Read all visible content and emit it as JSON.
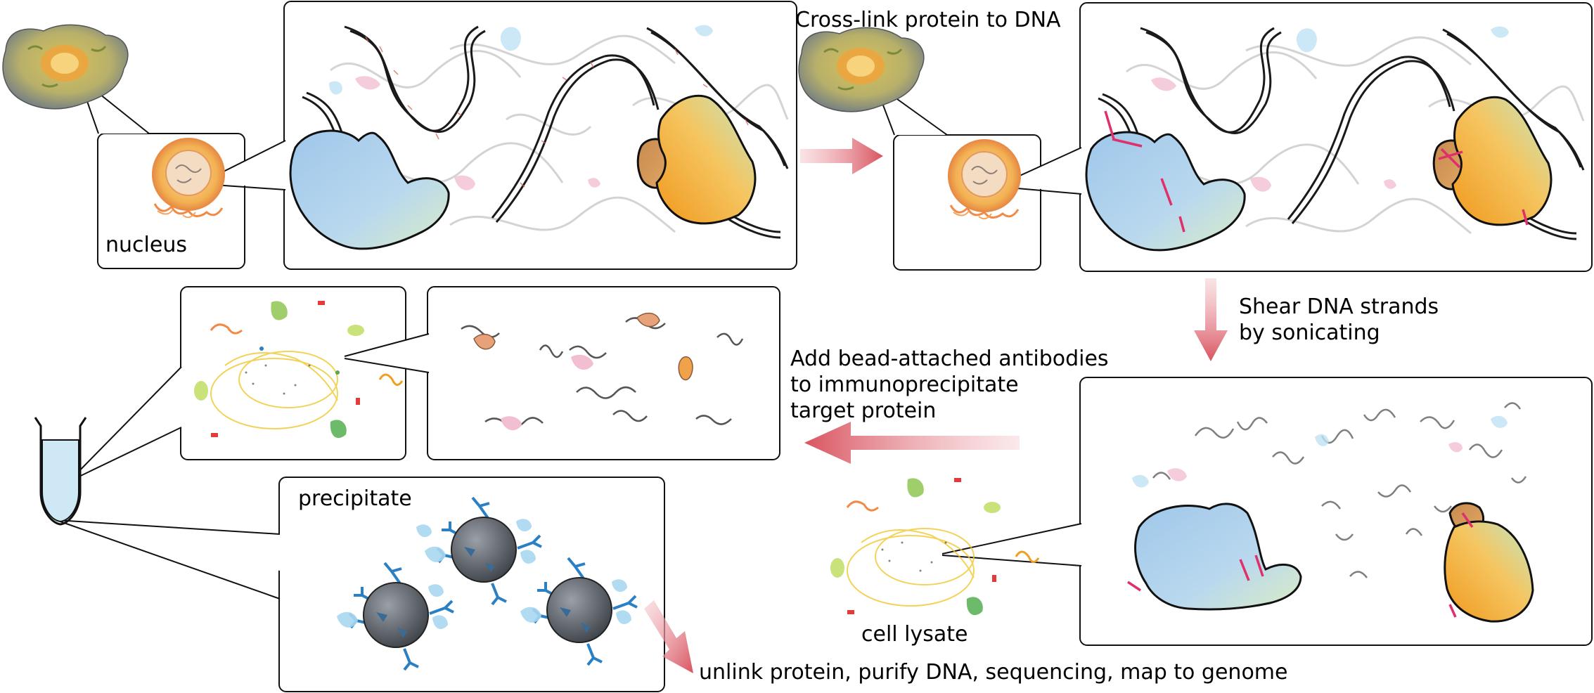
{
  "labels": {
    "nucleus": "nucleus",
    "crosslink": "Cross-link protein to DNA",
    "shear": "Shear DNA strands\nby sonicating",
    "add_antibodies": "Add bead-attached antibodies\nto immunoprecipitate\ntarget protein",
    "cell_lysate": "cell lysate",
    "precipitate": "precipitate",
    "final_steps": "unlink protein, purify DNA, sequencing, map to genome"
  },
  "icons": {
    "cell": "cell-icon",
    "nucleus": "nucleus-icon",
    "dna": "dna-double-helix-icon",
    "protein": "protein-blob-icon",
    "crosslink": "crosslink-bond-icon",
    "bead": "antibody-bead-icon",
    "tube": "test-tube-icon",
    "arrow": "process-arrow-icon"
  },
  "colors": {
    "arrow": "#d9535f",
    "crosslink": "#e0306b",
    "protein_blue": "#a8cdea",
    "protein_orange": "#f0a12c",
    "protein_green": "#bfe3b8",
    "small_protein_pink": "#f2bfd2",
    "bead": "#5b5f66",
    "antibody": "#2a80c4",
    "tube_liquid": "#cfe8f6",
    "box_stroke": "#111111"
  }
}
